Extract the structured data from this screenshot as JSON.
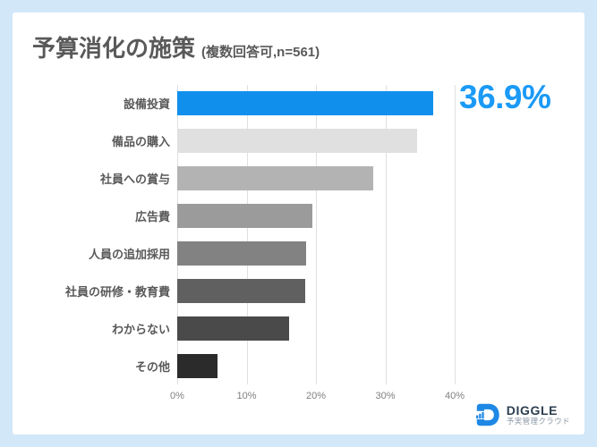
{
  "page": {
    "background_color": "#d2e7f8",
    "card_color": "#ffffff"
  },
  "header": {
    "title": "予算消化の施策",
    "subtitle": "(複数回答可,n=561)"
  },
  "chart_data": {
    "type": "bar",
    "orientation": "horizontal",
    "title": "予算消化の施策 (複数回答可,n=561)",
    "categories": [
      "設備投資",
      "備品の購入",
      "社員への賞与",
      "広告費",
      "人員の追加採用",
      "社員の研修・教育費",
      "わからない",
      "その他"
    ],
    "values": [
      36.9,
      34.6,
      28.3,
      19.5,
      18.6,
      18.4,
      16.1,
      5.8
    ],
    "bar_colors": [
      "#1090ec",
      "#e0e0e0",
      "#b3b3b3",
      "#9b9b9b",
      "#828282",
      "#606060",
      "#4a4a4a",
      "#2b2b2b"
    ],
    "xlabel": "",
    "ylabel": "",
    "xlim": [
      0,
      40
    ],
    "x_ticks": [
      "0%",
      "10%",
      "20%",
      "30%",
      "40%"
    ],
    "grid": true,
    "legend": false,
    "annotation": {
      "text": "36.9%",
      "row_index": 0,
      "color": "#1b9af7"
    }
  },
  "footer_logo": {
    "brand": "DIGGLE",
    "tagline": "予実管理クラウド",
    "brand_color": "#1e88e5"
  }
}
